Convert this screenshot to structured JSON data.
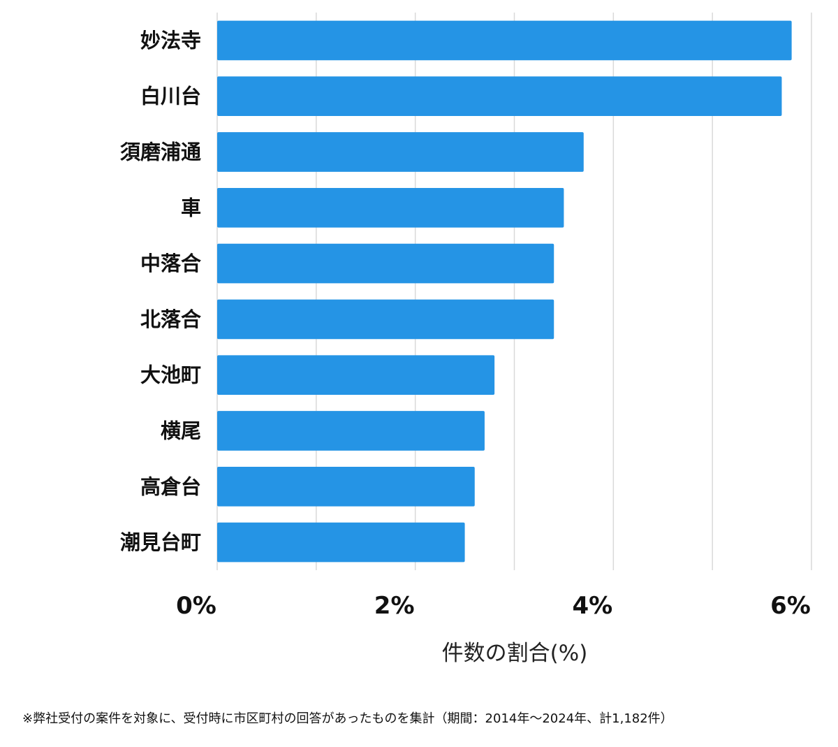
{
  "chart_data": {
    "type": "bar",
    "orientation": "horizontal",
    "categories": [
      "妙法寺",
      "白川台",
      "須磨浦通",
      "車",
      "中落合",
      "北落合",
      "大池町",
      "横尾",
      "高倉台",
      "潮見台町"
    ],
    "values": [
      5.8,
      5.7,
      3.7,
      3.5,
      3.4,
      3.4,
      2.8,
      2.7,
      2.6,
      2.5
    ],
    "xlabel": "件数の割合(%)",
    "xlim": [
      0,
      6
    ],
    "ticks": [
      0,
      2,
      4,
      6
    ],
    "tick_labels": [
      "0%",
      "2%",
      "4%",
      "6%"
    ],
    "grid": true,
    "colors": {
      "bar": "#2594e5",
      "grid": "#d9d9d9"
    }
  },
  "footnote": "※弊社受付の案件を対象に、受付時に市区町村の回答があったものを集計（期間：2014年～2024年、計1,182件）"
}
